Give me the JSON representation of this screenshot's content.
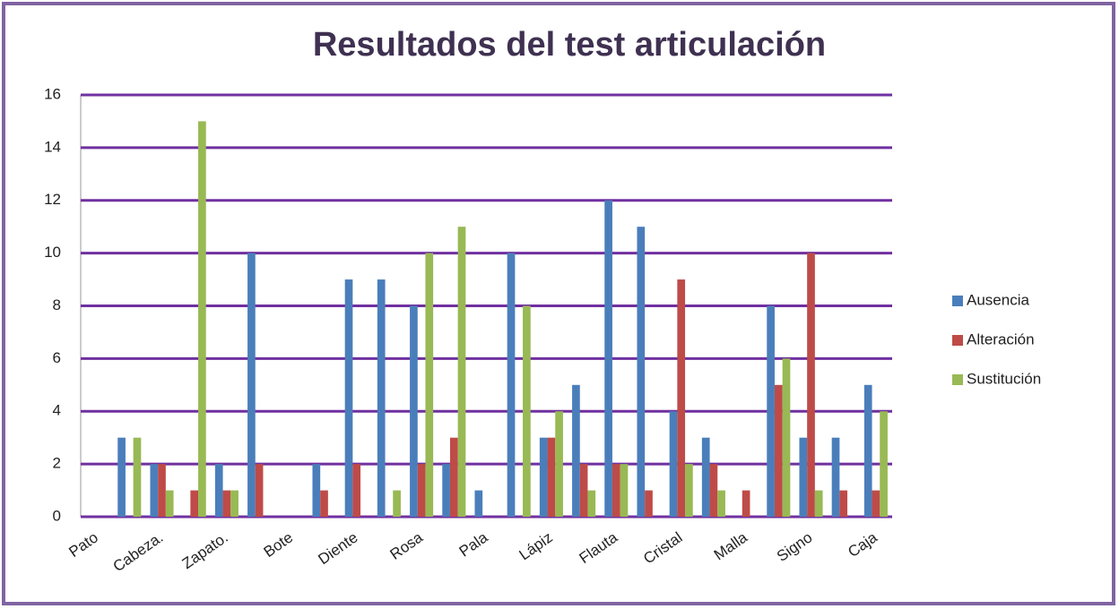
{
  "chart_data": {
    "type": "bar",
    "title": "Resultados del test articulación",
    "categories": [
      "Pato",
      null,
      "Cabeza.",
      null,
      "Zapato.",
      null,
      "Bote",
      null,
      "Diente",
      null,
      "Rosa",
      null,
      "Pala",
      null,
      "Lápiz",
      null,
      "Flauta",
      null,
      "Cristal",
      null,
      "Malla",
      null,
      "Signo",
      null,
      "Caja"
    ],
    "series": [
      {
        "name": "Ausencia",
        "color": "#4a7ebb",
        "values": [
          0,
          3,
          2,
          0,
          2,
          10,
          0,
          2,
          9,
          9,
          8,
          2,
          1,
          10,
          3,
          5,
          12,
          11,
          4,
          3,
          0,
          8,
          3,
          3,
          5
        ]
      },
      {
        "name": "Alteración",
        "color": "#be4b48",
        "values": [
          0,
          0,
          2,
          1,
          1,
          2,
          0,
          1,
          2,
          0,
          2,
          3,
          0,
          0,
          3,
          2,
          2,
          1,
          9,
          2,
          1,
          5,
          10,
          1,
          1
        ]
      },
      {
        "name": "Sustitución",
        "color": "#98b954",
        "values": [
          0,
          3,
          1,
          15,
          1,
          0,
          0,
          0,
          0,
          1,
          10,
          11,
          0,
          8,
          4,
          1,
          2,
          0,
          2,
          1,
          0,
          6,
          1,
          0,
          4
        ]
      }
    ],
    "ylim": [
      0,
      16
    ],
    "yticks": [
      0,
      2,
      4,
      6,
      8,
      10,
      12,
      14,
      16
    ],
    "grid": true,
    "legend": "right"
  }
}
